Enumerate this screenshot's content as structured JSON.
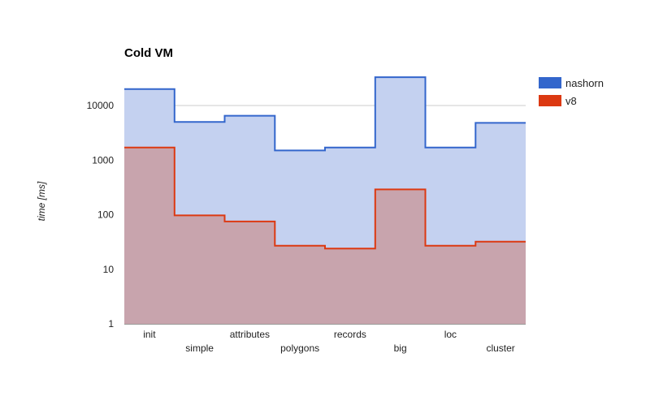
{
  "chart_data": {
    "type": "area",
    "title": "Cold VM",
    "xlabel": "",
    "ylabel": "time [ms]",
    "yscale": "log",
    "ylim": [
      1,
      50000
    ],
    "yticks": [
      1,
      10,
      100,
      1000,
      10000
    ],
    "ytick_labels": [
      "1",
      "10",
      "100",
      "1000",
      "10000"
    ],
    "grid": true,
    "legend_position": "right",
    "categories": [
      "init",
      "simple",
      "attributes",
      "polygons",
      "records",
      "big",
      "loc",
      "cluster"
    ],
    "series": [
      {
        "name": "nashorn",
        "color": "#3366cc",
        "fill": "#c4d1f0",
        "values": [
          20000,
          5000,
          6500,
          1500,
          1700,
          33000,
          1700,
          4800
        ]
      },
      {
        "name": "v8",
        "color": "#dc3912",
        "fill": "#c8a4ad",
        "values": [
          1700,
          97,
          75,
          27,
          24,
          290,
          27,
          32
        ]
      }
    ]
  }
}
